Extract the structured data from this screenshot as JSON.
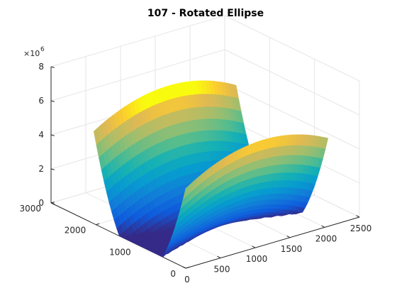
{
  "chart_data": {
    "type": "surface",
    "title": "107 - Rotated Ellipse",
    "xlabel": "",
    "ylabel": "",
    "zlabel": "",
    "x_ticks": [
      "0",
      "500",
      "1000",
      "1500",
      "2000",
      "2500"
    ],
    "y_ticks": [
      "0",
      "1000",
      "2000",
      "3000"
    ],
    "z_ticks": [
      "0",
      "2",
      "4",
      "6",
      "8"
    ],
    "z_exponent": "×10",
    "z_exponent_power": "6",
    "xlim": [
      0,
      2500
    ],
    "ylim": [
      0,
      3000
    ],
    "zlim": [
      0,
      8000000
    ],
    "grid": true,
    "colormap": "parula",
    "surface": {
      "x_range": [
        0,
        2048
      ],
      "y_range": [
        0,
        2048
      ],
      "corner_values": {
        "x0_y0": 4200000,
        "x2048_y0": 4100000,
        "x0_y2048": 6300000,
        "x2048_y2048": 6200000
      },
      "minimum": {
        "x": 1100,
        "y": 1000,
        "z": 0
      }
    },
    "colors": {
      "grid": "#e6e6e6",
      "axis": "#262626",
      "parula_low": "#352a87",
      "parula_high": "#f9fb0e"
    }
  }
}
